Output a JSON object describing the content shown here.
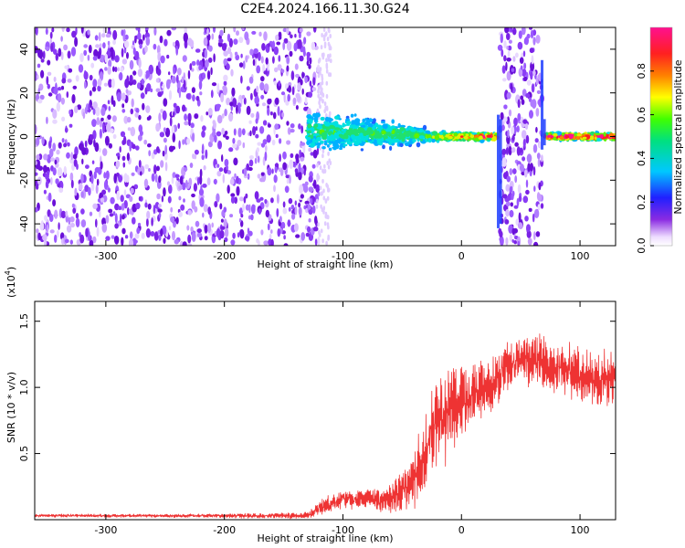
{
  "title": "C2E4.2024.166.11.30.G24",
  "colors": {
    "snr_line": "#ee3333",
    "background": "#ffffff"
  },
  "spectrogram": {
    "chart_data": {
      "type": "heatmap",
      "xlabel": "Height of straight line (km)",
      "ylabel": "Frequency (Hz)",
      "xlim": [
        -360,
        130
      ],
      "ylim": [
        -50,
        50
      ],
      "xticks": [
        -300,
        -200,
        -100,
        0,
        100
      ],
      "yticks": [
        -40,
        -20,
        0,
        20,
        40
      ],
      "colorbar": {
        "label": "Normalized spectral amplitude",
        "range": [
          0,
          1
        ],
        "ticks": [
          0.0,
          0.2,
          0.4,
          0.6,
          0.8
        ],
        "colormap": "rainbow (violet-blue-cyan-green-yellow-red-magenta)"
      },
      "regions": [
        {
          "x_range": [
            -360,
            -120
          ],
          "freq_range": [
            -50,
            50
          ],
          "amplitude": "low (noise, violet)"
        },
        {
          "x_range": [
            -130,
            -30
          ],
          "freq_range": [
            -10,
            15
          ],
          "amplitude": "0.1-0.4 (blue-cyan)"
        },
        {
          "x_range": [
            -30,
            30
          ],
          "freq_range": [
            -3,
            3
          ],
          "amplitude": "0.3-0.9 (cyan-red)"
        },
        {
          "x_range": [
            32,
            68
          ],
          "freq_range": [
            -50,
            50
          ],
          "amplitude": "low (noise, violet)"
        },
        {
          "x_range": [
            70,
            130
          ],
          "freq_range": [
            -2,
            2
          ],
          "amplitude": "0.8-0.95 (red)"
        }
      ]
    }
  },
  "snr": {
    "chart_data": {
      "type": "line",
      "xlabel": "Height of straight line (km)",
      "ylabel": "SNR (10 * v/v)",
      "multiplier": "(x10",
      "multiplier_exp": "4",
      "multiplier_close": ")",
      "xlim": [
        -360,
        130
      ],
      "ylim": [
        0,
        1.65
      ],
      "xticks": [
        -300,
        -200,
        -100,
        0,
        100
      ],
      "yticks": [
        0.5,
        1.0,
        1.5
      ],
      "yticklabels": [
        "0.5",
        "1.0",
        "1.5"
      ],
      "series": [
        {
          "x": [
            -360,
            -240,
            -130,
            -120,
            -110,
            -100,
            -90,
            -80,
            -70,
            -60,
            -50,
            -40,
            -35,
            -30,
            -25,
            -20,
            -15,
            -10,
            -5,
            0,
            5,
            10,
            15,
            20,
            25,
            30,
            35,
            40,
            50,
            60,
            70,
            80,
            90,
            100,
            110,
            120,
            130
          ],
          "values": [
            0.03,
            0.03,
            0.03,
            0.08,
            0.12,
            0.16,
            0.15,
            0.17,
            0.14,
            0.16,
            0.22,
            0.32,
            0.4,
            0.55,
            0.7,
            0.8,
            0.7,
            0.85,
            0.82,
            0.92,
            0.9,
            0.95,
            0.98,
            1.0,
            1.0,
            1.07,
            1.12,
            1.15,
            1.2,
            1.22,
            1.18,
            1.15,
            1.12,
            1.1,
            1.05,
            1.08,
            1.05
          ],
          "noise": [
            0.01,
            0.01,
            0.02,
            0.05,
            0.06,
            0.06,
            0.06,
            0.06,
            0.07,
            0.1,
            0.14,
            0.18,
            0.24,
            0.26,
            0.28,
            0.34,
            0.34,
            0.3,
            0.26,
            0.24,
            0.22,
            0.2,
            0.18,
            0.16,
            0.16,
            0.16,
            0.16,
            0.16,
            0.16,
            0.17,
            0.17,
            0.17,
            0.17,
            0.17,
            0.16,
            0.16,
            0.16
          ]
        }
      ]
    }
  }
}
